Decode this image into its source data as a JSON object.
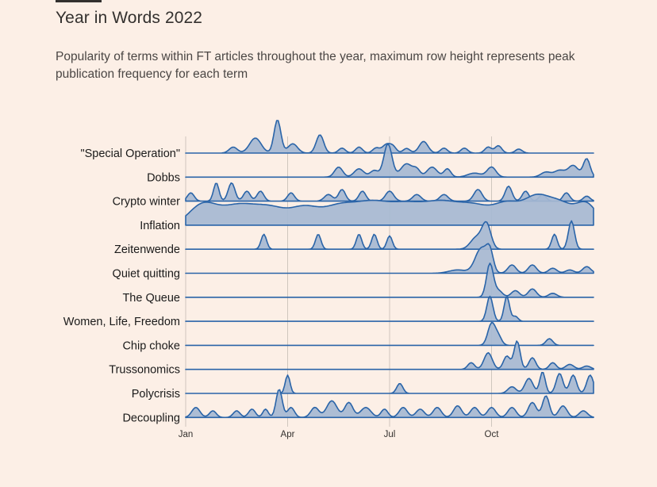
{
  "header": {
    "title": "Year in Words 2022",
    "subtitle": "Popularity of terms within FT articles throughout the year, maximum row height represents peak publication frequency for each term"
  },
  "colors": {
    "background": "#fcefe6",
    "ridge_fill": "#a6b8d2",
    "ridge_stroke": "#2a64a8",
    "gridline": "#cfc6be"
  },
  "chart_data": {
    "type": "area",
    "subtype": "ridgeline",
    "title": "Year in Words 2022",
    "x_unit": "month of 2022",
    "x_range": [
      0,
      12
    ],
    "x_ticks": [
      {
        "value": 0,
        "label": "Jan"
      },
      {
        "value": 3,
        "label": "Apr"
      },
      {
        "value": 6,
        "label": "Jul"
      },
      {
        "value": 9,
        "label": "Oct"
      }
    ],
    "grid": "vertical",
    "value_unit": "relative frequency (1 = peak for each term)",
    "series": [
      {
        "name": "\"Special Operation\"",
        "peaks": [
          [
            1.4,
            0.18,
            0.12
          ],
          [
            2.05,
            0.45,
            0.17
          ],
          [
            2.7,
            1.0,
            0.1
          ],
          [
            3.15,
            0.28,
            0.14
          ],
          [
            3.95,
            0.55,
            0.11
          ],
          [
            4.6,
            0.15,
            0.1
          ],
          [
            5.1,
            0.18,
            0.1
          ],
          [
            5.6,
            0.15,
            0.1
          ],
          [
            5.9,
            0.25,
            0.12
          ],
          [
            6.1,
            0.18,
            0.1
          ],
          [
            6.5,
            0.14,
            0.1
          ],
          [
            7.0,
            0.35,
            0.13
          ],
          [
            7.6,
            0.15,
            0.1
          ],
          [
            8.2,
            0.15,
            0.1
          ],
          [
            8.9,
            0.18,
            0.1
          ],
          [
            9.2,
            0.22,
            0.1
          ],
          [
            9.8,
            0.12,
            0.1
          ]
        ]
      },
      {
        "name": "Dobbs",
        "peaks": [
          [
            4.5,
            0.3,
            0.12
          ],
          [
            5.1,
            0.25,
            0.14
          ],
          [
            5.55,
            0.2,
            0.12
          ],
          [
            5.95,
            1.0,
            0.12
          ],
          [
            6.5,
            0.4,
            0.17
          ],
          [
            6.8,
            0.2,
            0.1
          ],
          [
            7.25,
            0.3,
            0.15
          ],
          [
            7.7,
            0.25,
            0.1
          ],
          [
            8.5,
            0.12,
            0.2
          ],
          [
            9.0,
            0.3,
            0.13
          ],
          [
            10.6,
            0.15,
            0.15
          ],
          [
            11.0,
            0.2,
            0.15
          ],
          [
            11.4,
            0.35,
            0.15
          ],
          [
            11.8,
            0.55,
            0.1
          ]
        ]
      },
      {
        "name": "Crypto winter",
        "peaks": [
          [
            0.15,
            0.25,
            0.1
          ],
          [
            0.9,
            0.55,
            0.08
          ],
          [
            1.35,
            0.55,
            0.1
          ],
          [
            1.8,
            0.3,
            0.1
          ],
          [
            2.2,
            0.3,
            0.1
          ],
          [
            3.1,
            0.25,
            0.1
          ],
          [
            4.2,
            0.2,
            0.12
          ],
          [
            4.6,
            0.35,
            0.1
          ],
          [
            5.2,
            0.3,
            0.1
          ],
          [
            6.0,
            0.3,
            0.12
          ],
          [
            6.8,
            0.2,
            0.12
          ],
          [
            7.6,
            0.2,
            0.12
          ],
          [
            8.6,
            0.35,
            0.12
          ],
          [
            9.5,
            0.45,
            0.1
          ],
          [
            10.0,
            0.3,
            0.1
          ],
          [
            10.5,
            0.2,
            0.1
          ],
          [
            11.2,
            0.25,
            0.1
          ],
          [
            11.8,
            0.15,
            0.1
          ]
        ]
      },
      {
        "name": "Inflation",
        "peaks": [
          [
            0.5,
            0.6,
            0.4
          ],
          [
            1.5,
            0.55,
            0.5
          ],
          [
            2.5,
            0.5,
            0.5
          ],
          [
            3.5,
            0.45,
            0.4
          ],
          [
            4.5,
            0.55,
            0.5
          ],
          [
            5.5,
            0.6,
            0.5
          ],
          [
            6.5,
            0.55,
            0.5
          ],
          [
            7.5,
            0.6,
            0.5
          ],
          [
            8.5,
            0.55,
            0.5
          ],
          [
            9.5,
            0.6,
            0.4
          ],
          [
            10.3,
            0.7,
            0.35
          ],
          [
            11.0,
            0.65,
            0.4
          ],
          [
            11.8,
            0.6,
            0.3
          ]
        ]
      },
      {
        "name": "Zeitenwende",
        "peaks": [
          [
            2.3,
            0.45,
            0.08
          ],
          [
            3.9,
            0.45,
            0.08
          ],
          [
            5.1,
            0.45,
            0.08
          ],
          [
            5.55,
            0.45,
            0.08
          ],
          [
            6.0,
            0.4,
            0.08
          ],
          [
            8.55,
            0.35,
            0.17
          ],
          [
            8.85,
            0.75,
            0.13
          ],
          [
            10.85,
            0.45,
            0.08
          ],
          [
            11.35,
            0.85,
            0.09
          ]
        ]
      },
      {
        "name": "Quiet quitting",
        "peaks": [
          [
            8.0,
            0.1,
            0.25
          ],
          [
            8.7,
            0.75,
            0.18
          ],
          [
            8.95,
            0.55,
            0.1
          ],
          [
            9.6,
            0.25,
            0.12
          ],
          [
            10.2,
            0.25,
            0.12
          ],
          [
            10.8,
            0.15,
            0.12
          ],
          [
            11.3,
            0.1,
            0.12
          ],
          [
            11.8,
            0.2,
            0.12
          ]
        ]
      },
      {
        "name": "The Queue",
        "peaks": [
          [
            8.95,
            1.0,
            0.1
          ],
          [
            9.2,
            0.2,
            0.12
          ],
          [
            9.7,
            0.2,
            0.12
          ],
          [
            10.2,
            0.25,
            0.12
          ],
          [
            10.8,
            0.12,
            0.12
          ]
        ]
      },
      {
        "name": "Women, Life, Freedom",
        "peaks": [
          [
            8.95,
            0.75,
            0.09
          ],
          [
            9.45,
            0.75,
            0.08
          ],
          [
            9.7,
            0.15,
            0.08
          ]
        ]
      },
      {
        "name": "Chip choke",
        "peaks": [
          [
            9.0,
            0.65,
            0.11
          ],
          [
            9.2,
            0.25,
            0.1
          ],
          [
            10.7,
            0.2,
            0.1
          ]
        ]
      },
      {
        "name": "Trussonomics",
        "peaks": [
          [
            8.4,
            0.2,
            0.1
          ],
          [
            8.9,
            0.5,
            0.12
          ],
          [
            9.45,
            0.4,
            0.1
          ],
          [
            9.75,
            0.85,
            0.09
          ],
          [
            10.2,
            0.35,
            0.1
          ],
          [
            10.8,
            0.2,
            0.1
          ],
          [
            11.3,
            0.15,
            0.12
          ],
          [
            11.8,
            0.1,
            0.12
          ]
        ]
      },
      {
        "name": "Polycrisis",
        "peaks": [
          [
            3.0,
            0.55,
            0.07
          ],
          [
            6.3,
            0.3,
            0.09
          ],
          [
            9.6,
            0.2,
            0.12
          ],
          [
            10.1,
            0.45,
            0.12
          ],
          [
            10.5,
            0.65,
            0.08
          ],
          [
            11.0,
            0.6,
            0.1
          ],
          [
            11.4,
            0.55,
            0.1
          ],
          [
            11.9,
            0.55,
            0.1
          ]
        ]
      },
      {
        "name": "Decoupling",
        "peaks": [
          [
            0.3,
            0.3,
            0.12
          ],
          [
            0.8,
            0.2,
            0.1
          ],
          [
            1.5,
            0.2,
            0.1
          ],
          [
            1.95,
            0.25,
            0.1
          ],
          [
            2.35,
            0.25,
            0.08
          ],
          [
            2.75,
            0.85,
            0.09
          ],
          [
            3.1,
            0.3,
            0.1
          ],
          [
            3.8,
            0.3,
            0.12
          ],
          [
            4.3,
            0.5,
            0.15
          ],
          [
            4.8,
            0.45,
            0.12
          ],
          [
            5.3,
            0.3,
            0.15
          ],
          [
            5.85,
            0.25,
            0.1
          ],
          [
            6.4,
            0.3,
            0.12
          ],
          [
            6.9,
            0.25,
            0.12
          ],
          [
            7.4,
            0.3,
            0.12
          ],
          [
            8.0,
            0.35,
            0.12
          ],
          [
            8.5,
            0.3,
            0.12
          ],
          [
            9.0,
            0.3,
            0.12
          ],
          [
            9.6,
            0.3,
            0.12
          ],
          [
            10.2,
            0.45,
            0.12
          ],
          [
            10.6,
            0.65,
            0.1
          ],
          [
            11.1,
            0.35,
            0.12
          ],
          [
            11.7,
            0.2,
            0.12
          ]
        ]
      }
    ]
  }
}
